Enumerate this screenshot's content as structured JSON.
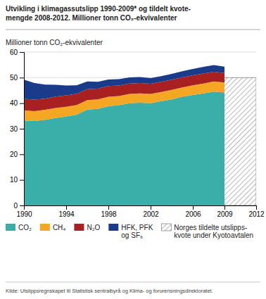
{
  "chart_data": {
    "type": "area",
    "stacked": true,
    "title": "Utvikling i klimagassutslipp 1990-2009* og tildelt kvote-\nmengde 2008-2012. Millioner tonn CO₂-ekvivalenter",
    "ylabel": "Millioner tonn CO₂-ekvivalenter",
    "source": "Kilde: Utslippsregnskapet til Statistisk sentralbyrå og Klima- og forurensningsdirektoratet.",
    "x": [
      1990,
      1991,
      1992,
      1993,
      1994,
      1995,
      1996,
      1997,
      1998,
      1999,
      2000,
      2001,
      2002,
      2003,
      2004,
      2005,
      2006,
      2007,
      2008,
      2009
    ],
    "series": [
      {
        "name": "CO₂",
        "color": "#3aafa9",
        "values": [
          33.2,
          33.0,
          33.5,
          34.2,
          34.8,
          35.5,
          37.5,
          37.8,
          38.8,
          39.2,
          40.0,
          40.2,
          40.0,
          40.8,
          41.5,
          42.5,
          43.2,
          43.8,
          44.5,
          44.2
        ]
      },
      {
        "name": "CH₄",
        "color": "#f5a623",
        "values": [
          4.0,
          3.9,
          3.9,
          3.9,
          3.8,
          3.8,
          3.7,
          3.7,
          3.7,
          3.6,
          3.6,
          3.6,
          3.6,
          3.6,
          3.7,
          3.7,
          3.8,
          3.9,
          4.0,
          3.9
        ]
      },
      {
        "name": "N₂O",
        "color": "#a82020",
        "values": [
          4.5,
          4.5,
          4.4,
          4.5,
          4.5,
          4.4,
          4.3,
          4.2,
          4.2,
          4.1,
          4.1,
          4.1,
          4.0,
          4.0,
          4.0,
          3.9,
          3.9,
          3.9,
          3.8,
          3.7
        ]
      },
      {
        "name": "HFK, PFK\nog SF₆",
        "color": "#1a3a8a",
        "values": [
          7.5,
          6.5,
          5.5,
          4.6,
          3.8,
          3.3,
          3.0,
          2.7,
          2.6,
          2.5,
          2.4,
          2.3,
          2.2,
          2.2,
          2.3,
          2.4,
          2.5,
          2.6,
          2.6,
          2.5
        ]
      }
    ],
    "quota": {
      "name": "Norges tildelte utslipps-\nkvote under Kyotoavtalen",
      "start": 2008,
      "end": 2012,
      "value": 50.0
    },
    "xlim": [
      1990,
      2012
    ],
    "xticks": [
      1990,
      1994,
      1998,
      2002,
      2006,
      2009,
      2012
    ],
    "ylim": [
      0,
      60
    ],
    "yticks": [
      0,
      10,
      20,
      30,
      40,
      50,
      60
    ],
    "grid": true,
    "legend": "bottom"
  }
}
